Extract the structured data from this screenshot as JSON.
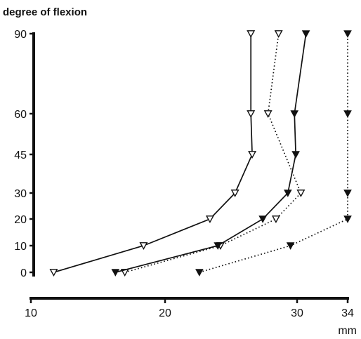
{
  "chart_data": {
    "type": "line",
    "ylabel": "degree of flexion",
    "xlabel": "mm",
    "xlim": [
      10,
      34
    ],
    "ylim": [
      0,
      90
    ],
    "xticks": [
      10,
      20,
      30,
      34
    ],
    "yticks": [
      0,
      10,
      20,
      30,
      45,
      60,
      90
    ],
    "grid": false,
    "series": [
      {
        "line_style": "solid",
        "marker": "open-triangle-down",
        "points": [
          [
            11.7,
            0
          ],
          [
            18.4,
            10
          ],
          [
            23.4,
            20
          ],
          [
            25.3,
            30
          ],
          [
            26.6,
            45
          ],
          [
            26.5,
            60
          ],
          [
            26.5,
            90
          ]
        ]
      },
      {
        "line_style": "dotted",
        "marker": "open-triangle-down",
        "points": [
          [
            17.0,
            0
          ],
          [
            24.2,
            10
          ],
          [
            28.4,
            20
          ],
          [
            30.3,
            30
          ],
          [
            27.8,
            60
          ],
          [
            28.6,
            90
          ]
        ]
      },
      {
        "line_style": "solid",
        "marker": "filled-triangle-down",
        "points": [
          [
            16.3,
            0
          ],
          [
            24.0,
            10
          ],
          [
            27.4,
            20
          ],
          [
            29.3,
            30
          ],
          [
            29.9,
            45
          ],
          [
            29.8,
            60
          ],
          [
            30.7,
            90
          ]
        ]
      },
      {
        "line_style": "dotted",
        "marker": "filled-triangle-down",
        "points": [
          [
            22.6,
            0
          ],
          [
            29.5,
            10
          ],
          [
            34.0,
            20
          ],
          [
            34.0,
            30
          ],
          [
            34.0,
            60
          ],
          [
            34.0,
            90
          ]
        ]
      }
    ]
  }
}
